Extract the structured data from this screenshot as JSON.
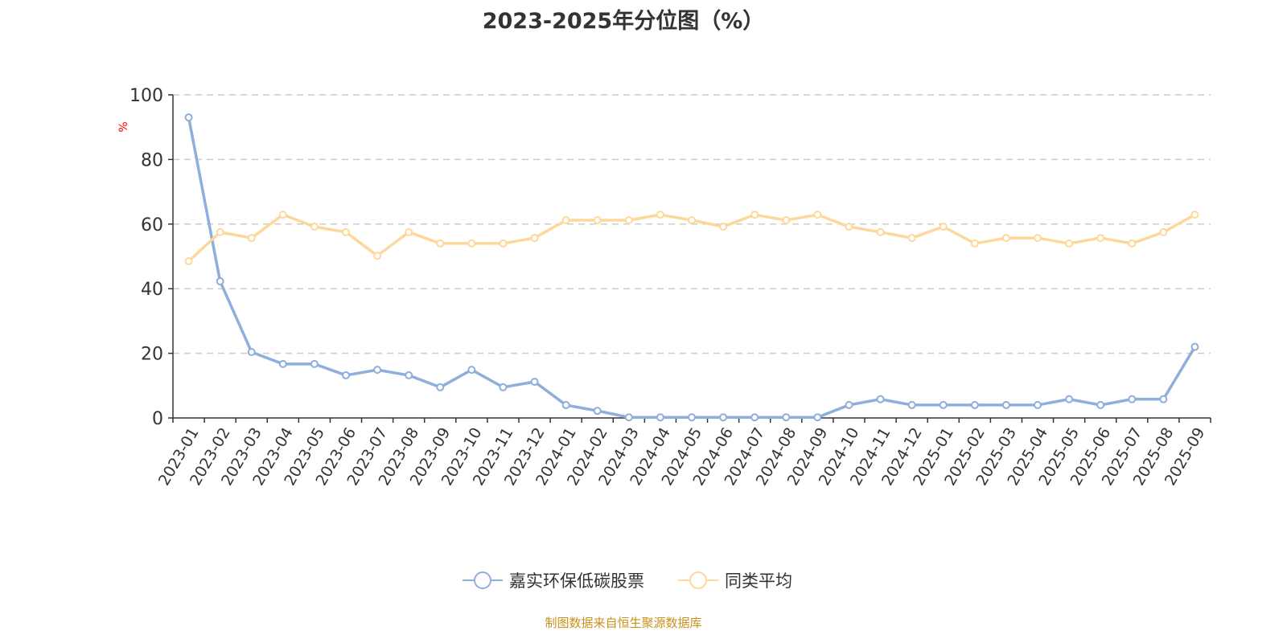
{
  "chart_data": {
    "type": "line",
    "title": "2023-2025年分位图（%）",
    "ylabel": "%",
    "ylim": [
      0,
      100
    ],
    "yticks": [
      0,
      20,
      40,
      60,
      80,
      100
    ],
    "grid": true,
    "legend_position": "bottom",
    "categories": [
      "2023-01",
      "2023-02",
      "2023-03",
      "2023-04",
      "2023-05",
      "2023-06",
      "2023-07",
      "2023-08",
      "2023-09",
      "2023-10",
      "2023-11",
      "2023-12",
      "2024-01",
      "2024-02",
      "2024-03",
      "2024-04",
      "2024-05",
      "2024-06",
      "2024-07",
      "2024-08",
      "2024-09",
      "2024-10",
      "2024-11",
      "2024-12",
      "2025-01",
      "2025-02",
      "2025-03",
      "2025-04",
      "2025-05",
      "2025-06",
      "2025-07",
      "2025-08",
      "2025-09"
    ],
    "series": [
      {
        "name": "嘉实环保低碳股票",
        "color": "#8eaedc",
        "values": [
          93,
          42.3,
          20.4,
          16.7,
          16.7,
          13.2,
          14.9,
          13.2,
          9.5,
          14.9,
          9.5,
          11.2,
          4,
          2.2,
          0.2,
          0.2,
          0.2,
          0.2,
          0.2,
          0.2,
          0.2,
          4,
          5.8,
          4,
          4,
          4,
          4,
          4,
          5.8,
          4,
          5.8,
          5.8,
          22
        ]
      },
      {
        "name": "同类平均",
        "color": "#fed89a",
        "values": [
          48.5,
          57.5,
          55.7,
          62.9,
          59.2,
          57.5,
          50.2,
          57.5,
          54,
          54,
          54,
          55.7,
          61.2,
          61.2,
          61.2,
          62.9,
          61.2,
          59.2,
          62.9,
          61.2,
          62.9,
          59.2,
          57.5,
          55.7,
          59.2,
          54,
          55.7,
          55.7,
          54,
          55.7,
          54,
          57.5,
          62.9
        ]
      }
    ]
  },
  "source": "制图数据来自恒生聚源数据库"
}
